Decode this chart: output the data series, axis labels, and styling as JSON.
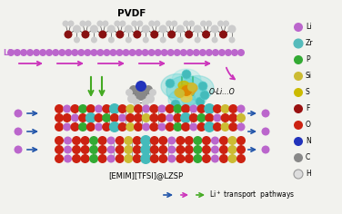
{
  "title_pvdf": "PVDF",
  "label_emim": "[EMIM][TFSI]@LZSP",
  "label_oli": "O-Li…O",
  "label_li": "Li⁺",
  "legend_items": [
    "Li",
    "Zr",
    "P",
    "Si",
    "S",
    "F",
    "O",
    "N",
    "C",
    "H"
  ],
  "legend_colors": [
    "#bb66cc",
    "#55bbbb",
    "#33aa33",
    "#ccbb33",
    "#ccbb00",
    "#991111",
    "#cc2211",
    "#2233bb",
    "#888888",
    "#dddddd"
  ],
  "legend_edge_colors": [
    "none",
    "#55bbbb",
    "none",
    "none",
    "none",
    "none",
    "none",
    "none",
    "none",
    "#999999"
  ],
  "arrow_blue": "#2255aa",
  "arrow_pink": "#cc33bb",
  "arrow_green": "#44aa22",
  "bg_color": "#f2f2ee",
  "pvdf_dark": "#881111",
  "pvdf_light": "#cccccc",
  "li_color": "#bb66cc",
  "red_atom": "#cc2211",
  "green_atom": "#33aa33",
  "cyan_atom": "#44bbbb",
  "yellow_atom": "#ccbb33",
  "purple_atom": "#bb66cc",
  "white_atom": "#dddddd"
}
